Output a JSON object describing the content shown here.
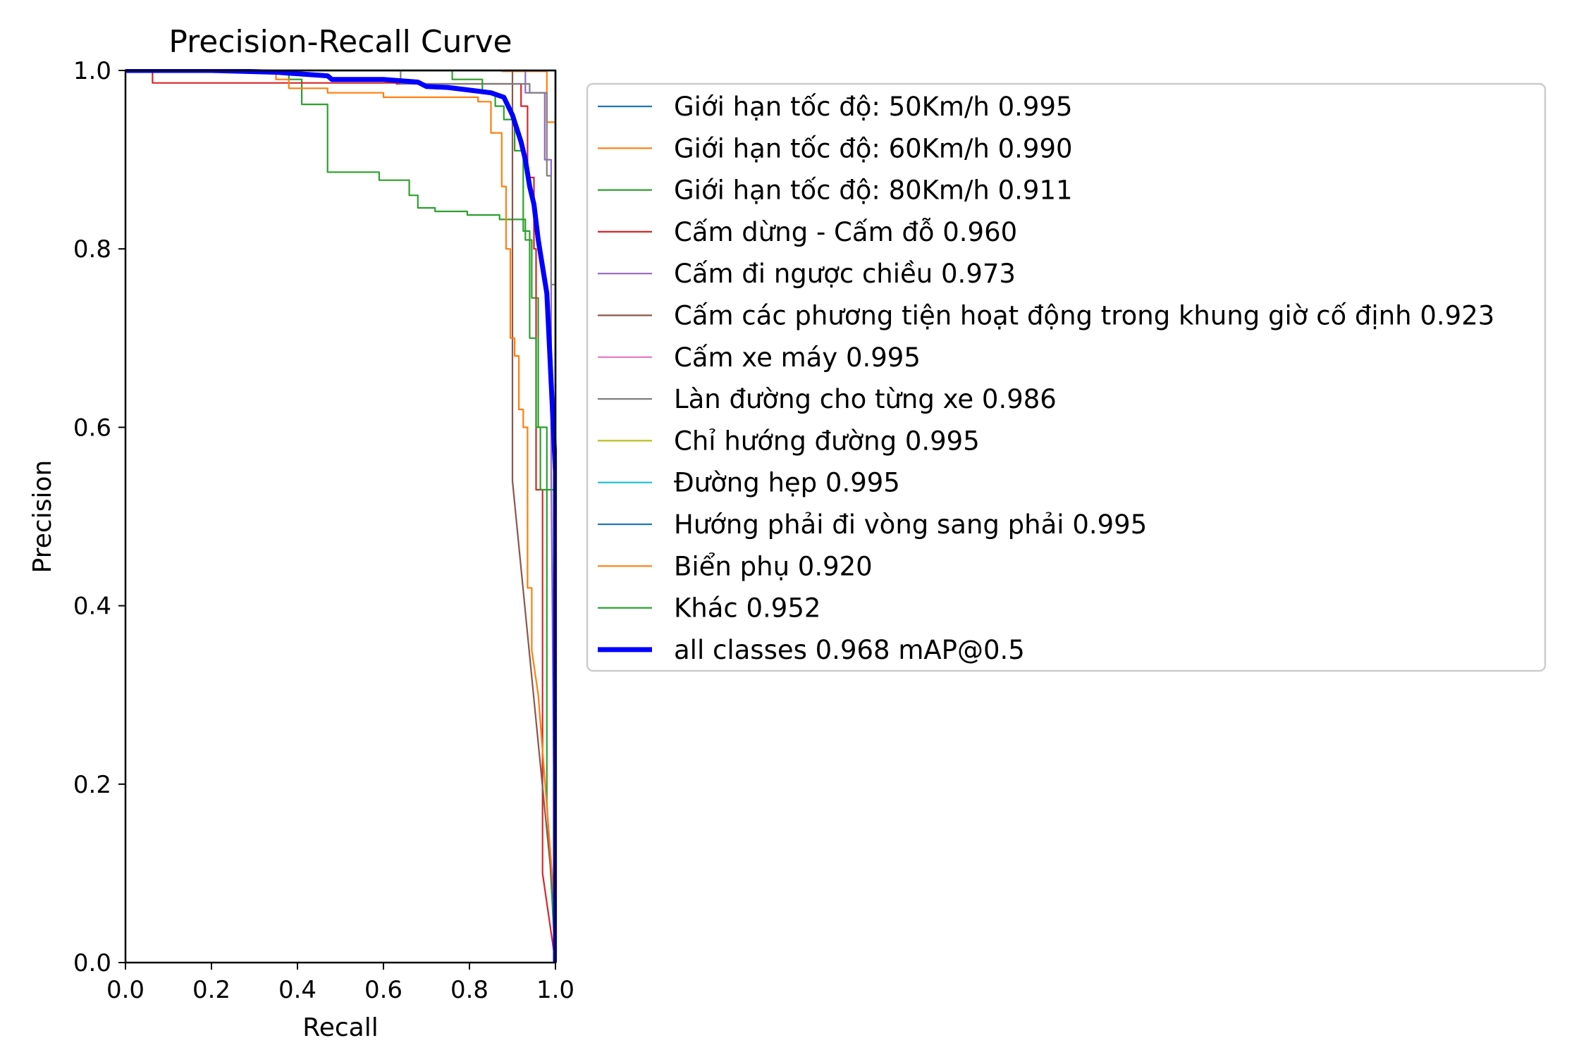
{
  "chart_data": {
    "type": "line",
    "title": "Precision-Recall Curve",
    "xlabel": "Recall",
    "ylabel": "Precision",
    "xlim": [
      0.0,
      1.0
    ],
    "ylim": [
      0.0,
      1.0
    ],
    "xticks": [
      "0.0",
      "0.2",
      "0.4",
      "0.6",
      "0.8",
      "1.0"
    ],
    "yticks": [
      "0.0",
      "0.2",
      "0.4",
      "0.6",
      "0.8",
      "1.0"
    ],
    "grid": false,
    "legend_position": "outside right, top",
    "series": [
      {
        "name": "Giới hạn tốc độ: 50Km/h 0.995",
        "color": "#1f77b4",
        "width": "thin",
        "points": [
          [
            0,
            1
          ],
          [
            0.99,
            1
          ],
          [
            1.0,
            1
          ],
          [
            1.0,
            0
          ]
        ]
      },
      {
        "name": "Giới hạn tốc độ: 60Km/h 0.990",
        "color": "#ff7f0e",
        "width": "thin",
        "points": [
          [
            0,
            1
          ],
          [
            0.876,
            1
          ],
          [
            0.876,
            0.999
          ],
          [
            0.98,
            0.999
          ],
          [
            0.98,
            0.942
          ],
          [
            1.0,
            0.942
          ],
          [
            1.0,
            0
          ]
        ]
      },
      {
        "name": "Giới hạn tốc độ: 80Km/h 0.911",
        "color": "#2ca02c",
        "width": "thin",
        "points": [
          [
            0,
            1
          ],
          [
            0.38,
            1
          ],
          [
            0.38,
            0.99
          ],
          [
            0.41,
            0.99
          ],
          [
            0.41,
            0.962
          ],
          [
            0.47,
            0.962
          ],
          [
            0.47,
            0.886
          ],
          [
            0.59,
            0.886
          ],
          [
            0.59,
            0.877
          ],
          [
            0.66,
            0.877
          ],
          [
            0.66,
            0.86
          ],
          [
            0.68,
            0.86
          ],
          [
            0.68,
            0.846
          ],
          [
            0.72,
            0.846
          ],
          [
            0.72,
            0.842
          ],
          [
            0.795,
            0.842
          ],
          [
            0.795,
            0.838
          ],
          [
            0.87,
            0.838
          ],
          [
            0.87,
            0.833
          ],
          [
            0.93,
            0.833
          ],
          [
            0.93,
            0.81
          ],
          [
            0.945,
            0.81
          ],
          [
            0.945,
            0.745
          ],
          [
            0.96,
            0.745
          ],
          [
            0.96,
            0.6
          ],
          [
            0.98,
            0.6
          ],
          [
            0.98,
            0.18
          ],
          [
            1.0,
            0
          ]
        ]
      },
      {
        "name": "Cấm dừng - Cấm đỗ 0.960",
        "color": "#d62728",
        "width": "thin",
        "points": [
          [
            0,
            1
          ],
          [
            0.063,
            1
          ],
          [
            0.063,
            0.986
          ],
          [
            0.63,
            0.986
          ],
          [
            0.63,
            0.985
          ],
          [
            0.92,
            0.985
          ],
          [
            0.92,
            0.96
          ],
          [
            0.935,
            0.96
          ],
          [
            0.935,
            0.88
          ],
          [
            0.95,
            0.88
          ],
          [
            0.95,
            0.8
          ],
          [
            0.955,
            0.8
          ],
          [
            0.955,
            0.53
          ],
          [
            0.97,
            0.53
          ],
          [
            0.97,
            0.1
          ],
          [
            1.0,
            0
          ]
        ]
      },
      {
        "name": "Cấm đi ngược chiều 0.973",
        "color": "#9467bd",
        "width": "thin",
        "points": [
          [
            0,
            1
          ],
          [
            0.93,
            1
          ],
          [
            0.93,
            0.975
          ],
          [
            0.975,
            0.975
          ],
          [
            0.975,
            0.9
          ],
          [
            0.99,
            0.9
          ],
          [
            0.99,
            0.55
          ],
          [
            1.0,
            0
          ]
        ]
      },
      {
        "name": "Cấm các phương tiện hoạt động trong khung giờ cố định 0.923",
        "color": "#8c564b",
        "width": "thin",
        "points": [
          [
            0,
            1
          ],
          [
            0.9,
            1
          ],
          [
            0.9,
            0.54
          ],
          [
            1.0,
            0.05
          ],
          [
            1.0,
            0
          ]
        ]
      },
      {
        "name": "Cấm xe máy 0.995",
        "color": "#e377c2",
        "width": "thin",
        "points": [
          [
            0,
            1
          ],
          [
            0.99,
            1
          ],
          [
            1.0,
            1
          ],
          [
            1.0,
            0
          ]
        ]
      },
      {
        "name": "Làn đường cho từng xe 0.986",
        "color": "#7f7f7f",
        "width": "thin",
        "points": [
          [
            0,
            1
          ],
          [
            0.64,
            1
          ],
          [
            0.64,
            0.985
          ],
          [
            0.94,
            0.985
          ],
          [
            0.94,
            0.975
          ],
          [
            0.98,
            0.975
          ],
          [
            0.98,
            0.882
          ],
          [
            0.99,
            0.882
          ],
          [
            0.99,
            0.76
          ],
          [
            1.0,
            0.76
          ],
          [
            1.0,
            0
          ]
        ]
      },
      {
        "name": "Chỉ hướng đường 0.995",
        "color": "#bcbd22",
        "width": "thin",
        "points": [
          [
            0,
            1
          ],
          [
            0.99,
            1
          ],
          [
            1.0,
            1
          ],
          [
            1.0,
            0
          ]
        ]
      },
      {
        "name": "Đường hẹp 0.995",
        "color": "#17becf",
        "width": "thin",
        "points": [
          [
            0,
            1
          ],
          [
            0.99,
            1
          ],
          [
            1.0,
            1
          ],
          [
            1.0,
            0
          ]
        ]
      },
      {
        "name": "Hướng phải đi vòng sang phải 0.995",
        "color": "#1f77b4",
        "width": "thin",
        "points": [
          [
            0,
            1
          ],
          [
            0.99,
            1
          ],
          [
            1.0,
            1
          ],
          [
            1.0,
            0
          ]
        ]
      },
      {
        "name": "Biển phụ 0.920",
        "color": "#ff7f0e",
        "width": "thin",
        "points": [
          [
            0,
            1
          ],
          [
            0.35,
            1
          ],
          [
            0.35,
            0.99
          ],
          [
            0.38,
            0.99
          ],
          [
            0.38,
            0.98
          ],
          [
            0.47,
            0.98
          ],
          [
            0.47,
            0.975
          ],
          [
            0.6,
            0.975
          ],
          [
            0.6,
            0.97
          ],
          [
            0.82,
            0.97
          ],
          [
            0.82,
            0.965
          ],
          [
            0.85,
            0.965
          ],
          [
            0.85,
            0.93
          ],
          [
            0.875,
            0.93
          ],
          [
            0.875,
            0.87
          ],
          [
            0.885,
            0.87
          ],
          [
            0.885,
            0.8
          ],
          [
            0.895,
            0.8
          ],
          [
            0.895,
            0.7
          ],
          [
            0.905,
            0.7
          ],
          [
            0.905,
            0.68
          ],
          [
            0.915,
            0.68
          ],
          [
            0.915,
            0.62
          ],
          [
            0.925,
            0.62
          ],
          [
            0.925,
            0.6
          ],
          [
            0.935,
            0.6
          ],
          [
            0.935,
            0.42
          ],
          [
            0.945,
            0.42
          ],
          [
            0.945,
            0.35
          ],
          [
            0.96,
            0.3
          ],
          [
            1.0,
            0.05
          ],
          [
            1.0,
            0
          ]
        ]
      },
      {
        "name": "Khác 0.952",
        "color": "#2ca02c",
        "width": "thin",
        "points": [
          [
            0,
            1
          ],
          [
            0.76,
            1
          ],
          [
            0.76,
            0.99
          ],
          [
            0.83,
            0.99
          ],
          [
            0.83,
            0.975
          ],
          [
            0.86,
            0.975
          ],
          [
            0.86,
            0.96
          ],
          [
            0.88,
            0.96
          ],
          [
            0.88,
            0.945
          ],
          [
            0.905,
            0.945
          ],
          [
            0.905,
            0.91
          ],
          [
            0.925,
            0.91
          ],
          [
            0.925,
            0.82
          ],
          [
            0.94,
            0.82
          ],
          [
            0.94,
            0.7
          ],
          [
            0.955,
            0.7
          ],
          [
            0.955,
            0.6
          ],
          [
            0.965,
            0.6
          ],
          [
            0.965,
            0.53
          ],
          [
            1.0,
            0.53
          ],
          [
            1.0,
            0
          ]
        ]
      },
      {
        "name": "all classes 0.968 mAP@0.5",
        "color": "#0000ff",
        "width": "thick",
        "points": [
          [
            0,
            1
          ],
          [
            0.2,
            1
          ],
          [
            0.35,
            0.998
          ],
          [
            0.47,
            0.994
          ],
          [
            0.48,
            0.99
          ],
          [
            0.6,
            0.99
          ],
          [
            0.68,
            0.987
          ],
          [
            0.7,
            0.982
          ],
          [
            0.75,
            0.981
          ],
          [
            0.8,
            0.978
          ],
          [
            0.85,
            0.975
          ],
          [
            0.88,
            0.97
          ],
          [
            0.89,
            0.96
          ],
          [
            0.9,
            0.95
          ],
          [
            0.91,
            0.935
          ],
          [
            0.92,
            0.92
          ],
          [
            0.93,
            0.9
          ],
          [
            0.94,
            0.87
          ],
          [
            0.95,
            0.85
          ],
          [
            0.96,
            0.81
          ],
          [
            0.97,
            0.78
          ],
          [
            0.98,
            0.75
          ],
          [
            0.985,
            0.7
          ],
          [
            0.99,
            0.65
          ],
          [
            1.0,
            0.55
          ],
          [
            1.0,
            0
          ]
        ]
      }
    ]
  }
}
